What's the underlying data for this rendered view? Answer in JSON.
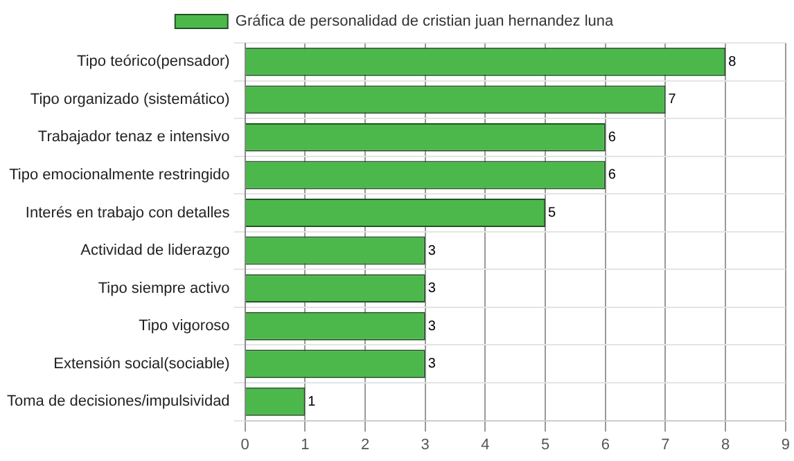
{
  "chart_data": {
    "type": "bar",
    "orientation": "horizontal",
    "categories": [
      "Tipo teórico(pensador)",
      "Tipo organizado (sistemático)",
      "Trabajador tenaz e intensivo",
      "Tipo emocionalmente restringido",
      "Interés en trabajo con detalles",
      "Actividad de liderazgo",
      "Tipo siempre activo",
      "Tipo vigoroso",
      "Extensión social(sociable)",
      "Toma de decisiones/impulsividad"
    ],
    "series": [
      {
        "name": "Gráfica de personalidad de cristian juan hernandez luna",
        "color": "#4cb84c",
        "values": [
          8,
          7,
          6,
          6,
          5,
          3,
          3,
          3,
          3,
          1
        ]
      }
    ],
    "xlim": [
      0,
      9
    ],
    "xticks": [
      0,
      1,
      2,
      3,
      4,
      5,
      6,
      7,
      8,
      9
    ],
    "grid": true,
    "legend": "top",
    "data_labels": true
  }
}
